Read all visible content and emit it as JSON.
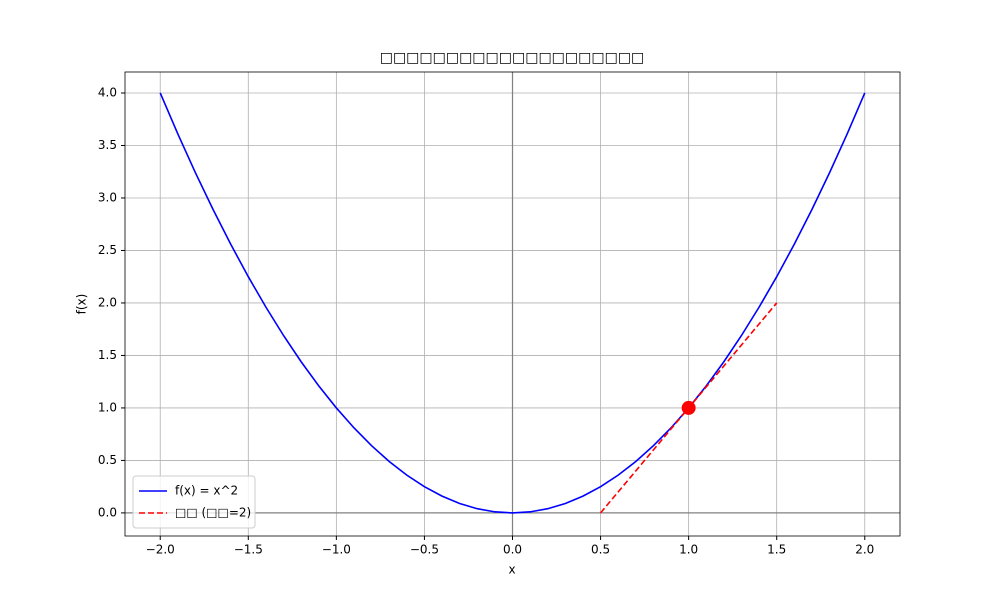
{
  "chart_data": {
    "type": "line",
    "title": "□□□□□□□□□□□□□□□□□□□□",
    "xlabel": "x",
    "ylabel": "f(x)",
    "xlim": [
      -2.2,
      2.2
    ],
    "ylim": [
      -0.22,
      4.2
    ],
    "xticks": [
      {
        "value": -2,
        "label": "−2.0"
      },
      {
        "value": -1.5,
        "label": "−1.5"
      },
      {
        "value": -1,
        "label": "−1.0"
      },
      {
        "value": -0.5,
        "label": "−0.5"
      },
      {
        "value": 0,
        "label": "0.0"
      },
      {
        "value": 0.5,
        "label": "0.5"
      },
      {
        "value": 1,
        "label": "1.0"
      },
      {
        "value": 1.5,
        "label": "1.5"
      },
      {
        "value": 2,
        "label": "2.0"
      }
    ],
    "yticks": [
      {
        "value": 0,
        "label": "0.0"
      },
      {
        "value": 0.5,
        "label": "0.5"
      },
      {
        "value": 1,
        "label": "1.0"
      },
      {
        "value": 1.5,
        "label": "1.5"
      },
      {
        "value": 2,
        "label": "2.0"
      },
      {
        "value": 2.5,
        "label": "2.5"
      },
      {
        "value": 3,
        "label": "3.0"
      },
      {
        "value": 3.5,
        "label": "3.5"
      },
      {
        "value": 4,
        "label": "4.0"
      }
    ],
    "grid": true,
    "legend": "lower left",
    "series": [
      {
        "name": "f(x) = x^2",
        "color": "#0000ff",
        "dashed": false,
        "x": [
          -2,
          -1.9,
          -1.8,
          -1.7,
          -1.6,
          -1.5,
          -1.4,
          -1.3,
          -1.2,
          -1.1,
          -1,
          -0.9,
          -0.8,
          -0.7,
          -0.6,
          -0.5,
          -0.4,
          -0.3,
          -0.2,
          -0.1,
          0,
          0.1,
          0.2,
          0.3,
          0.4,
          0.5,
          0.6,
          0.7,
          0.8,
          0.9,
          1,
          1.1,
          1.2,
          1.3,
          1.4,
          1.5,
          1.6,
          1.7,
          1.8,
          1.9,
          2
        ],
        "values": [
          4,
          3.61,
          3.24,
          2.89,
          2.56,
          2.25,
          1.96,
          1.69,
          1.44,
          1.21,
          1,
          0.81,
          0.64,
          0.49,
          0.36,
          0.25,
          0.16,
          0.09,
          0.04,
          0.01,
          0,
          0.01,
          0.04,
          0.09,
          0.16,
          0.25,
          0.36,
          0.49,
          0.64,
          0.81,
          1,
          1.21,
          1.44,
          1.69,
          1.96,
          2.25,
          2.56,
          2.89,
          3.24,
          3.61,
          4
        ]
      },
      {
        "name": "□□ (□□=2)",
        "color": "#ff0000",
        "dashed": true,
        "x": [
          0.5,
          1.5
        ],
        "values": [
          0,
          2
        ]
      }
    ],
    "markers": {
      "color": "#ff0000",
      "x": [
        1
      ],
      "values": [
        1
      ]
    }
  }
}
